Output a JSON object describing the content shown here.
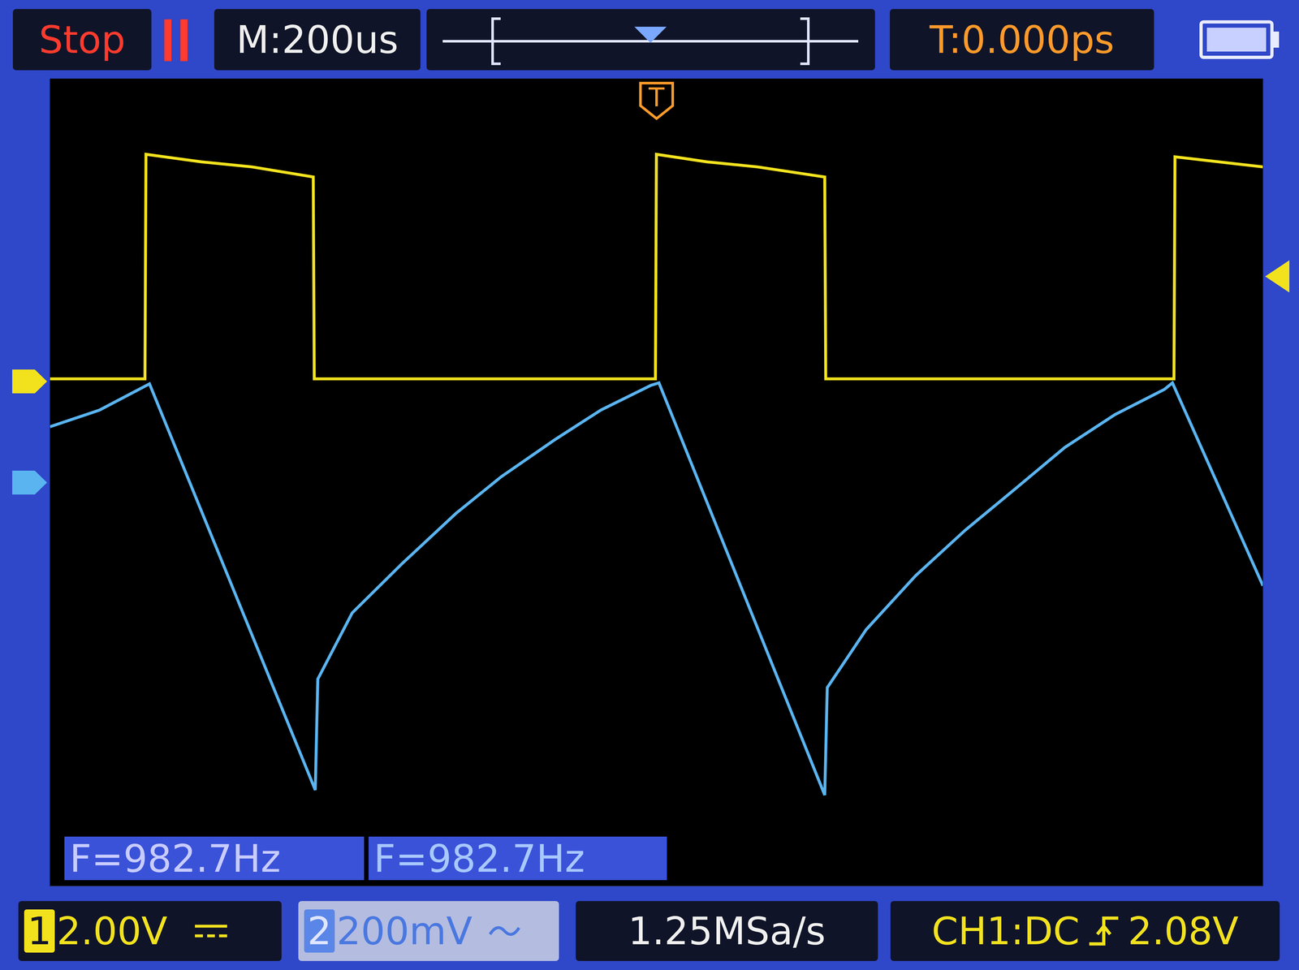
{
  "chart_data": {
    "type": "line",
    "xlim": [
      -1200,
      1200
    ],
    "xticks": [
      -1200,
      -1000,
      -800,
      -600,
      -400,
      -200,
      0,
      200,
      400,
      600,
      800,
      1000,
      1200
    ],
    "ylim": [
      -10,
      6
    ],
    "yticks": [
      -10,
      -8,
      -6,
      -4,
      -2,
      0,
      2,
      4,
      6
    ],
    "y2lim": [
      -800,
      800
    ],
    "y2ticks": [
      -800,
      -600,
      -400,
      -200,
      0,
      200,
      400,
      600,
      800
    ],
    "grid": true,
    "tick_labels": false,
    "trigger_time": 0,
    "trigger_level": 2.08,
    "series": [
      {
        "color": "#f2e21e",
        "ground": 0,
        "x": [
          -1200,
          -1012,
          -1010,
          -900,
          -800,
          -679,
          -677,
          -300,
          -2,
          0,
          100,
          200,
          333,
          335,
          700,
          1024,
          1026,
          1200
        ],
        "values": [
          0.05,
          0.05,
          4.5,
          4.35,
          4.25,
          4.05,
          0.05,
          0.05,
          0.05,
          4.5,
          4.35,
          4.25,
          4.05,
          0.05,
          0.05,
          0.05,
          4.45,
          4.25
        ]
      },
      {
        "color": "#5ab4f0",
        "axis": "y2",
        "ground": 0,
        "x": [
          -1200,
          -1102,
          -1003,
          -675,
          -670,
          -602,
          -503,
          -397,
          -307,
          -200,
          -110,
          -11,
          5,
          333,
          338,
          415,
          513,
          611,
          710,
          808,
          907,
          1005,
          1021,
          1200
        ],
        "values": [
          110,
          143,
          195,
          -610,
          -390,
          -259,
          -161,
          -62,
          11,
          85,
          143,
          192,
          197,
          -620,
          -407,
          -292,
          -185,
          -95,
          -13,
          69,
          134,
          184,
          197,
          -205
        ]
      }
    ]
  },
  "screen": {
    "status": "Stop",
    "timebase": "M:200us",
    "trigger_offset": "T:0.000ps",
    "trigger_marker": "T",
    "frequency": [
      "F=982.7Hz",
      "F=982.7Hz"
    ],
    "channels": [
      {
        "label": "1",
        "scale": "2.00V"
      },
      {
        "label": "2",
        "scale": "200mV"
      }
    ],
    "sample_rate": "1.25MSa/s",
    "trigger": {
      "source": "CH1:DC",
      "level": "2.08V"
    }
  }
}
